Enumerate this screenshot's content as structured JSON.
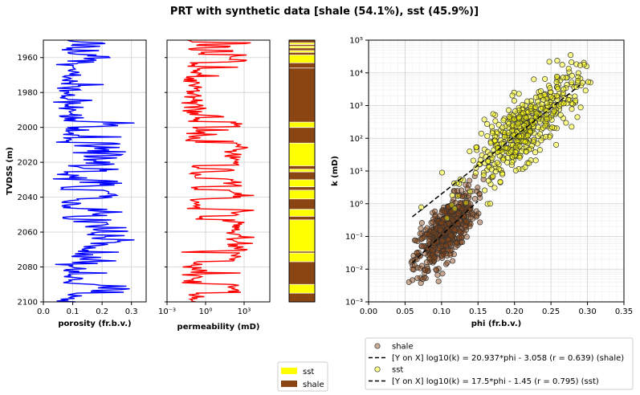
{
  "suptitle": "PRT with synthetic data  [shale (54.1%), sst (45.9%)]",
  "colors": {
    "sst": "#ffff00",
    "shale": "#8b4513",
    "por": "#0000ff",
    "perm": "#ff0000",
    "grid": "#d0d0d0"
  },
  "chart_data": [
    {
      "type": "line",
      "panel": "porosity-log",
      "title": "",
      "xlabel": "porosity (fr.b.v.)",
      "ylabel": "TVDSS (m)",
      "xlim": [
        0.0,
        0.35
      ],
      "ylim": [
        2100,
        1950
      ],
      "xticks": [
        "0.0",
        "0.1",
        "0.2",
        "0.3"
      ],
      "yticks": [
        "1960",
        "1980",
        "2000",
        "2020",
        "2040",
        "2060",
        "2080",
        "2100"
      ],
      "series": [
        {
          "values_by_zone": {
            "shale": 0.09,
            "sst": 0.2
          }
        }
      ]
    },
    {
      "type": "line",
      "panel": "permeability-log",
      "title": "",
      "xlabel": "permeability (mD)",
      "xscale": "log",
      "xlim": [
        0.001,
        100000
      ],
      "xticks": [
        "10⁻³",
        "10⁰",
        "10³"
      ],
      "series": [
        {
          "values_by_zone": {
            "shale": 0.15,
            "sst": 200
          }
        }
      ]
    },
    {
      "type": "bar",
      "panel": "lithology-column",
      "zones": [
        {
          "top": 1950,
          "base": 1951.5,
          "lith": "shale"
        },
        {
          "top": 1951.5,
          "base": 1952.5,
          "lith": "sst"
        },
        {
          "top": 1952.5,
          "base": 1953.5,
          "lith": "shale"
        },
        {
          "top": 1953.5,
          "base": 1954.5,
          "lith": "sst"
        },
        {
          "top": 1954.5,
          "base": 1956,
          "lith": "shale"
        },
        {
          "top": 1956,
          "base": 1957,
          "lith": "sst"
        },
        {
          "top": 1957,
          "base": 1958.5,
          "lith": "shale"
        },
        {
          "top": 1958.5,
          "base": 1963,
          "lith": "sst"
        },
        {
          "top": 1963,
          "base": 1966,
          "lith": "shale"
        },
        {
          "top": 1966,
          "base": 1997,
          "lith": "shale"
        },
        {
          "top": 1997,
          "base": 2000,
          "lith": "sst"
        },
        {
          "top": 2000,
          "base": 2009,
          "lith": "shale"
        },
        {
          "top": 2009,
          "base": 2022,
          "lith": "sst"
        },
        {
          "top": 2022,
          "base": 2024,
          "lith": "shale"
        },
        {
          "top": 2024,
          "base": 2025.5,
          "lith": "sst"
        },
        {
          "top": 2025.5,
          "base": 2030,
          "lith": "shale"
        },
        {
          "top": 2030,
          "base": 2034,
          "lith": "sst"
        },
        {
          "top": 2034,
          "base": 2036,
          "lith": "shale"
        },
        {
          "top": 2036,
          "base": 2041,
          "lith": "sst"
        },
        {
          "top": 2041,
          "base": 2047,
          "lith": "shale"
        },
        {
          "top": 2047,
          "base": 2051,
          "lith": "sst"
        },
        {
          "top": 2051,
          "base": 2053,
          "lith": "shale"
        },
        {
          "top": 2053,
          "base": 2071,
          "lith": "sst"
        },
        {
          "top": 2071,
          "base": 2072,
          "lith": "shale"
        },
        {
          "top": 2072,
          "base": 2077,
          "lith": "sst"
        },
        {
          "top": 2077,
          "base": 2090,
          "lith": "shale"
        },
        {
          "top": 2090,
          "base": 2095,
          "lith": "sst"
        },
        {
          "top": 2095,
          "base": 2100,
          "lith": "shale"
        }
      ],
      "legend": [
        {
          "name": "sst",
          "lith": "sst"
        },
        {
          "name": "shale",
          "lith": "shale"
        }
      ]
    },
    {
      "type": "scatter",
      "panel": "crossplot",
      "title": "",
      "xlabel": "phi (fr.b.v.)",
      "ylabel": "k (mD)",
      "xlim": [
        0.0,
        0.35
      ],
      "ylim": [
        0.001,
        100000
      ],
      "yscale": "log",
      "xticks": [
        "0.00",
        "0.05",
        "0.10",
        "0.15",
        "0.20",
        "0.25",
        "0.30",
        "0.35"
      ],
      "yticks": [
        "10⁻³",
        "10⁻²",
        "10⁻¹",
        "10⁰",
        "10¹",
        "10²",
        "10³",
        "10⁴",
        "10⁵"
      ],
      "series": [
        {
          "name": "shale",
          "count": 580,
          "phi_mean": 0.105,
          "phi_sd": 0.02,
          "fit_slope": 20.937,
          "fit_intercept": -3.058
        },
        {
          "name": "sst",
          "count": 490,
          "phi_mean": 0.215,
          "phi_sd": 0.038,
          "fit_slope": 17.5,
          "fit_intercept": -1.45
        }
      ],
      "fits": [
        {
          "label": "[Y on X]  log10(k) = 20.937*phi - 3.058  (r = 0.639)  (shale)",
          "slope": 20.937,
          "intercept": -3.058,
          "x_range": [
            0.06,
            0.15
          ]
        },
        {
          "label": "[Y on X]  log10(k) = 17.5*phi - 1.45  (r = 0.795)  (sst)",
          "slope": 17.5,
          "intercept": -1.45,
          "x_range": [
            0.06,
            0.29
          ]
        }
      ],
      "legend": [
        "shale",
        "[Y on X]  log10(k) = 20.937*phi - 3.058  (r = 0.639)  (shale)",
        "sst",
        "[Y on X]  log10(k) = 17.5*phi - 1.45  (r = 0.795)  (sst)"
      ]
    }
  ]
}
